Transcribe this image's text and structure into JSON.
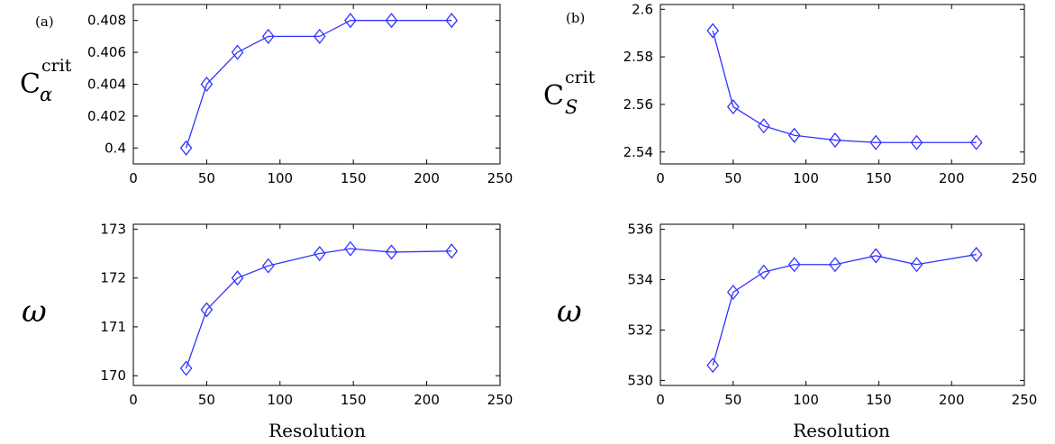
{
  "colors": {
    "series": "#3333ff",
    "axes": "#000000"
  },
  "panels": {
    "a_label": "(a)",
    "b_label": "(b)",
    "a_top_ylabel_base": "C",
    "a_top_ylabel_sup": "crit",
    "a_top_ylabel_sub": "α",
    "b_top_ylabel_base": "C",
    "b_top_ylabel_sup": "crit",
    "b_top_ylabel_sub": "S",
    "omega_label": "ω",
    "xlabel": "Resolution"
  },
  "chart_data": [
    {
      "type": "line",
      "panel": "a-top",
      "x": [
        36,
        50,
        71,
        92,
        127,
        148,
        176,
        217
      ],
      "y": [
        0.4,
        0.404,
        0.406,
        0.407,
        0.407,
        0.408,
        0.408,
        0.408
      ],
      "marker": "diamond",
      "xlim": [
        0,
        250
      ],
      "ylim": [
        0.399,
        0.409
      ],
      "xticks": [
        0,
        50,
        100,
        150,
        200,
        250
      ],
      "yticks": [
        0.4,
        0.402,
        0.404,
        0.406,
        0.408
      ],
      "xticklabels": [
        "0",
        "50",
        "100",
        "150",
        "200",
        "250"
      ],
      "yticklabels": [
        "0.4",
        "0.402",
        "0.404",
        "0.406",
        "0.408"
      ]
    },
    {
      "type": "line",
      "panel": "a-bottom",
      "x": [
        36,
        50,
        71,
        92,
        127,
        148,
        176,
        217
      ],
      "y": [
        170.15,
        171.35,
        172.0,
        172.25,
        172.5,
        172.6,
        172.53,
        172.55
      ],
      "marker": "diamond",
      "xlim": [
        0,
        250
      ],
      "ylim": [
        169.8,
        173.1
      ],
      "xticks": [
        0,
        50,
        100,
        150,
        200,
        250
      ],
      "yticks": [
        170,
        171,
        172,
        173
      ],
      "xticklabels": [
        "0",
        "50",
        "100",
        "150",
        "200",
        "250"
      ],
      "yticklabels": [
        "170",
        "171",
        "172",
        "173"
      ],
      "xlabel": "Resolution"
    },
    {
      "type": "line",
      "panel": "b-top",
      "x": [
        36,
        50,
        71,
        92,
        120,
        148,
        176,
        217
      ],
      "y": [
        2.591,
        2.559,
        2.551,
        2.547,
        2.545,
        2.544,
        2.544,
        2.544
      ],
      "marker": "diamond",
      "xlim": [
        0,
        250
      ],
      "ylim": [
        2.535,
        2.602
      ],
      "xticks": [
        0,
        50,
        100,
        150,
        200,
        250
      ],
      "yticks": [
        2.54,
        2.56,
        2.58,
        2.6
      ],
      "xticklabels": [
        "0",
        "50",
        "100",
        "150",
        "200",
        "250"
      ],
      "yticklabels": [
        "2.54",
        "2.56",
        "2.58",
        "2.6"
      ]
    },
    {
      "type": "line",
      "panel": "b-bottom",
      "x": [
        36,
        50,
        71,
        92,
        120,
        148,
        176,
        217
      ],
      "y": [
        530.6,
        533.5,
        534.3,
        534.6,
        534.6,
        534.95,
        534.6,
        535.0
      ],
      "marker": "diamond",
      "xlim": [
        0,
        250
      ],
      "ylim": [
        529.8,
        536.2
      ],
      "xticks": [
        0,
        50,
        100,
        150,
        200,
        250
      ],
      "yticks": [
        530,
        532,
        534,
        536
      ],
      "xticklabels": [
        "0",
        "50",
        "100",
        "150",
        "200",
        "250"
      ],
      "yticklabels": [
        "530",
        "532",
        "534",
        "536"
      ],
      "xlabel": "Resolution"
    }
  ]
}
